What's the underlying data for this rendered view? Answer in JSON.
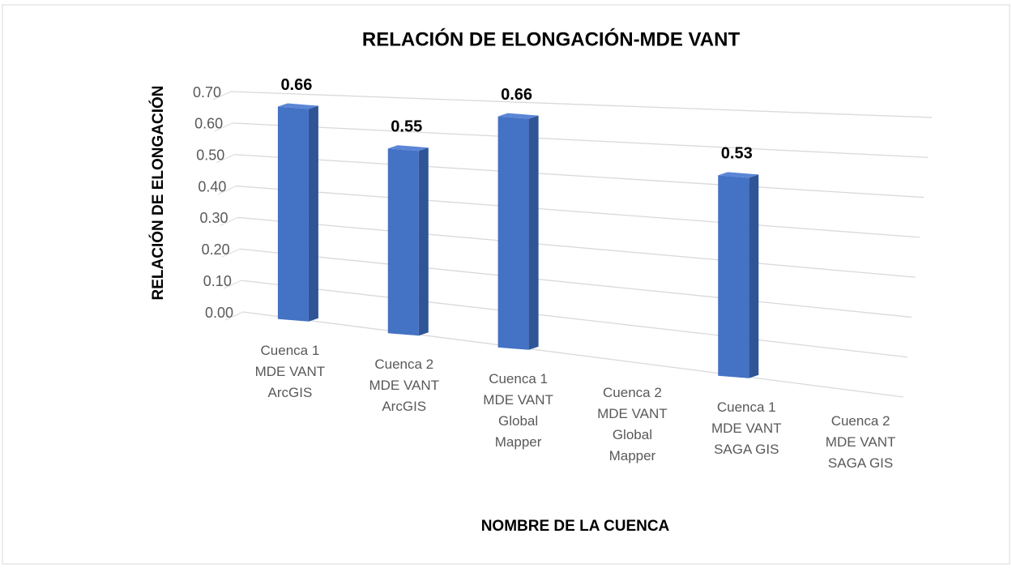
{
  "chart_data": {
    "type": "bar3d",
    "title": "RELACIÓN DE ELONGACIÓN-MDE VANT",
    "x_label": "NOMBRE DE LA CUENCA",
    "y_label": "RELACIÓN DE ELONGACIÓN",
    "categories": [
      "Cuenca 1 MDE VANT ArcGIS",
      "Cuenca 2 MDE VANT ArcGIS",
      "Cuenca 1 MDE VANT Global Mapper",
      "Cuenca 2 MDE VANT Global Mapper",
      "Cuenca 1 MDE VANT SAGA GIS",
      "Cuenca 2 MDE VANT SAGA GIS"
    ],
    "values": [
      0.66,
      0.55,
      0.66,
      null,
      0.53,
      null
    ],
    "color": "#4472c4",
    "ylim": [
      0,
      0.7
    ],
    "yticks": [
      {
        "value": 0,
        "label": "0.00"
      },
      {
        "value": 0.1,
        "label": "0.10"
      },
      {
        "value": 0.2,
        "label": "0.20"
      },
      {
        "value": 0.3,
        "label": "0.30"
      },
      {
        "value": 0.4,
        "label": "0.40"
      },
      {
        "value": 0.5,
        "label": "0.50"
      },
      {
        "value": 0.6,
        "label": "0.60"
      },
      {
        "value": 0.7,
        "label": "0.70"
      }
    ],
    "grid": true
  }
}
